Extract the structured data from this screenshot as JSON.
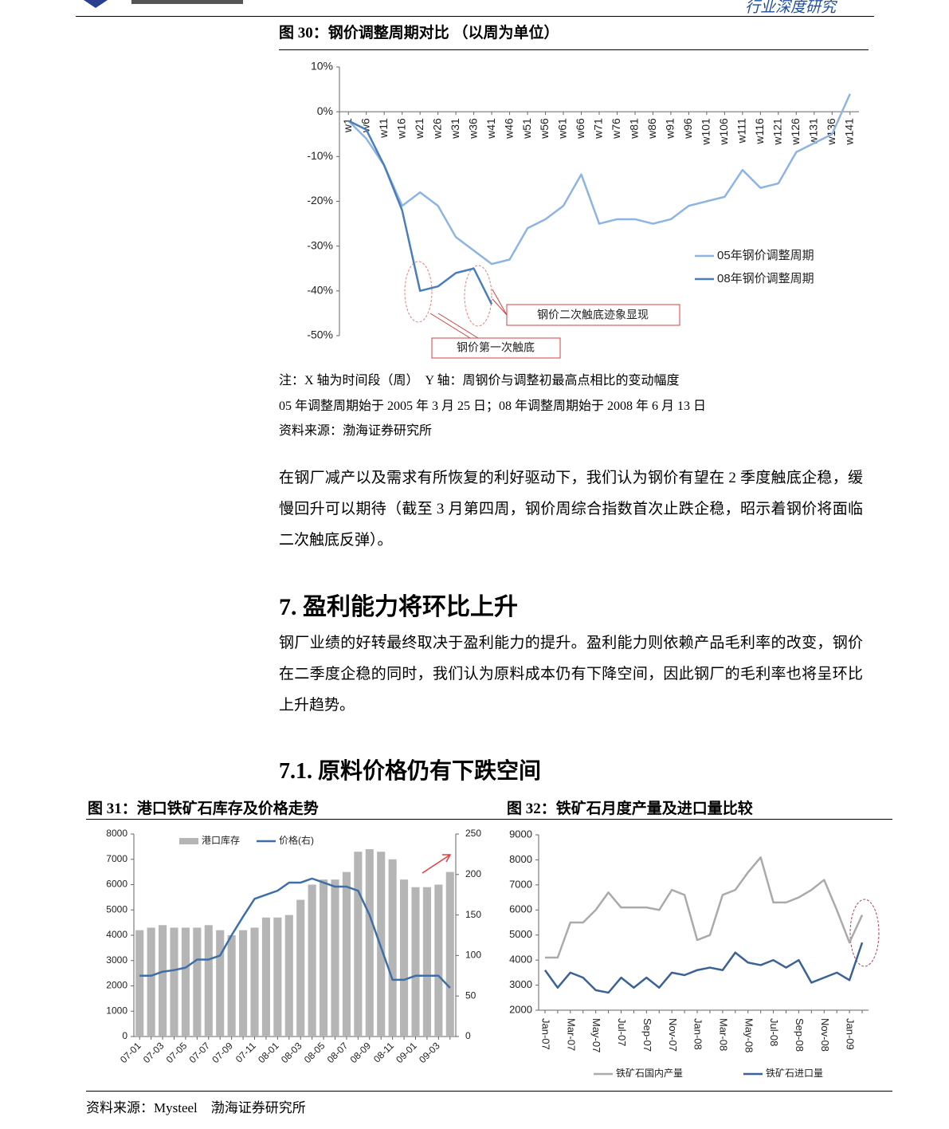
{
  "header": {
    "section": "行业深度研究"
  },
  "notes": [
    "注：X 轴为时间段（周）　Y 轴：周钢价与调整初最高点相比的变动幅度",
    "05 年调整周期始于 2005 年 3 月 25 日；08 年调整周期始于 2008 年 6 月 13 日",
    "资料来源：渤海证券研究所"
  ],
  "paragraphs": [
    "在钢厂减产以及需求有所恢复的利好驱动下，我们认为钢价有望在 2 季度触底企稳，缓慢回升可以期待（截至 3 月第四周，钢价周综合指数首次止跌企稳，昭示着钢价将面临二次触底反弹）。",
    "钢厂业绩的好转最终取决于盈利能力的提升。盈利能力则依赖产品毛利率的改变，钢价在二季度企稳的同时，我们认为原料成本仍有下降空间，因此钢厂的毛利率也将呈环比上升趋势。"
  ],
  "headings": [
    "7. 盈利能力将环比上升",
    "7.1. 原料价格仍有下跌空间"
  ],
  "source": "资料来源：Mysteel　渤海证券研究所",
  "chart_data": [
    {
      "type": "line",
      "title": "图 30：钢价调整周期对比 （以周为单位）",
      "categories": [
        "w1",
        "w6",
        "w11",
        "w16",
        "w21",
        "w26",
        "w31",
        "w36",
        "w41",
        "w46",
        "w51",
        "w56",
        "w61",
        "w66",
        "w71",
        "w76",
        "w81",
        "w86",
        "w91",
        "w96",
        "w101",
        "w106",
        "w111",
        "w116",
        "w121",
        "w126",
        "w131",
        "w136",
        "w141"
      ],
      "series": [
        {
          "name": "05年钢价调整周期",
          "color": "#8db4e2",
          "values": [
            -2,
            -6,
            -12,
            -21,
            -18,
            -21,
            -28,
            -31,
            -34,
            -33,
            -26,
            -24,
            -21,
            -14,
            -25,
            -24,
            -24,
            -25,
            -24,
            -21,
            -20,
            -19,
            -13,
            -17,
            -16,
            -9,
            -7,
            -5,
            4
          ]
        },
        {
          "name": "08年钢价调整周期",
          "color": "#4a7ebb",
          "values": [
            -2,
            -4,
            -12,
            -22,
            -40,
            -39,
            -36,
            -35,
            -43,
            null,
            null,
            null,
            null,
            null,
            null,
            null,
            null,
            null,
            null,
            null,
            null,
            null,
            null,
            null,
            null,
            null,
            null,
            null,
            null
          ]
        }
      ],
      "ylim": [
        -50,
        10
      ],
      "yticks": [
        {
          "value": -50,
          "label": "-50%"
        },
        {
          "value": -40,
          "label": "-40%"
        },
        {
          "value": -30,
          "label": "-30%"
        },
        {
          "value": -20,
          "label": "-20%"
        },
        {
          "value": -10,
          "label": "-10%"
        },
        {
          "value": 0,
          "label": "0%"
        },
        {
          "value": 10,
          "label": "10%"
        }
      ],
      "annotations": [
        "钢价二次触底迹象显现",
        "钢价第一次触底"
      ]
    },
    {
      "type": "combo",
      "title": "图 31：港口铁矿石库存及价格走势",
      "categories": [
        "07-01",
        null,
        "07-03",
        null,
        "07-05",
        null,
        "07-07",
        null,
        "07-09",
        null,
        "07-11",
        null,
        "08-01",
        null,
        "08-03",
        null,
        "08-05",
        null,
        "08-07",
        null,
        "08-09",
        null,
        "08-11",
        null,
        "09-01",
        null,
        "09-03",
        null
      ],
      "series": [
        {
          "name": "港口库存",
          "type": "bar",
          "color": "#b5b5b5",
          "values": [
            4200,
            4300,
            4400,
            4300,
            4300,
            4300,
            4400,
            4200,
            4000,
            4200,
            4300,
            4700,
            4700,
            4800,
            5400,
            6000,
            6200,
            6200,
            6500,
            7300,
            7400,
            7300,
            7000,
            6200,
            5900,
            5900,
            6000,
            6500
          ]
        },
        {
          "name": "价格(右)",
          "type": "line",
          "axis": "y2",
          "color": "#3e6ea8",
          "values": [
            75,
            75,
            80,
            82,
            85,
            95,
            95,
            100,
            125,
            148,
            170,
            175,
            180,
            190,
            190,
            195,
            190,
            185,
            185,
            180,
            150,
            110,
            70,
            70,
            75,
            75,
            75,
            60
          ]
        }
      ],
      "ylim": [
        0,
        8000
      ],
      "yticks": [
        0,
        1000,
        2000,
        3000,
        4000,
        5000,
        6000,
        7000,
        8000
      ],
      "y2lim": [
        0,
        250
      ],
      "y2ticks": [
        0,
        50,
        100,
        150,
        200,
        250
      ]
    },
    {
      "type": "line",
      "title": "图 32：铁矿石月度产量及进口量比较",
      "categories": [
        "Jan-07",
        null,
        "Mar-07",
        null,
        "May-07",
        null,
        "Jul-07",
        null,
        "Sep-07",
        null,
        "Nov-07",
        null,
        "Jan-08",
        null,
        "Mar-08",
        null,
        "May-08",
        null,
        "Jul-08",
        null,
        "Sep-08",
        null,
        "Nov-08",
        null,
        "Jan-09",
        null
      ],
      "series": [
        {
          "name": "铁矿石国内产量",
          "color": "#aaaaaa",
          "values": [
            4100,
            4100,
            5500,
            5500,
            6000,
            6700,
            6100,
            6100,
            6100,
            6000,
            6800,
            6600,
            4800,
            5000,
            6600,
            6800,
            7500,
            8100,
            6300,
            6300,
            6500,
            6800,
            7200,
            6000,
            4700,
            5800
          ]
        },
        {
          "name": "铁矿石进口量",
          "color": "#3b6296",
          "values": [
            3600,
            2900,
            3500,
            3300,
            2800,
            2700,
            3300,
            2900,
            3300,
            2900,
            3500,
            3400,
            3600,
            3700,
            3600,
            4300,
            3900,
            3800,
            4000,
            3700,
            4000,
            3100,
            3300,
            3500,
            3200,
            4700
          ]
        }
      ],
      "ylim": [
        2000,
        9000
      ],
      "yticks": [
        2000,
        3000,
        4000,
        5000,
        6000,
        7000,
        8000,
        9000
      ]
    }
  ]
}
